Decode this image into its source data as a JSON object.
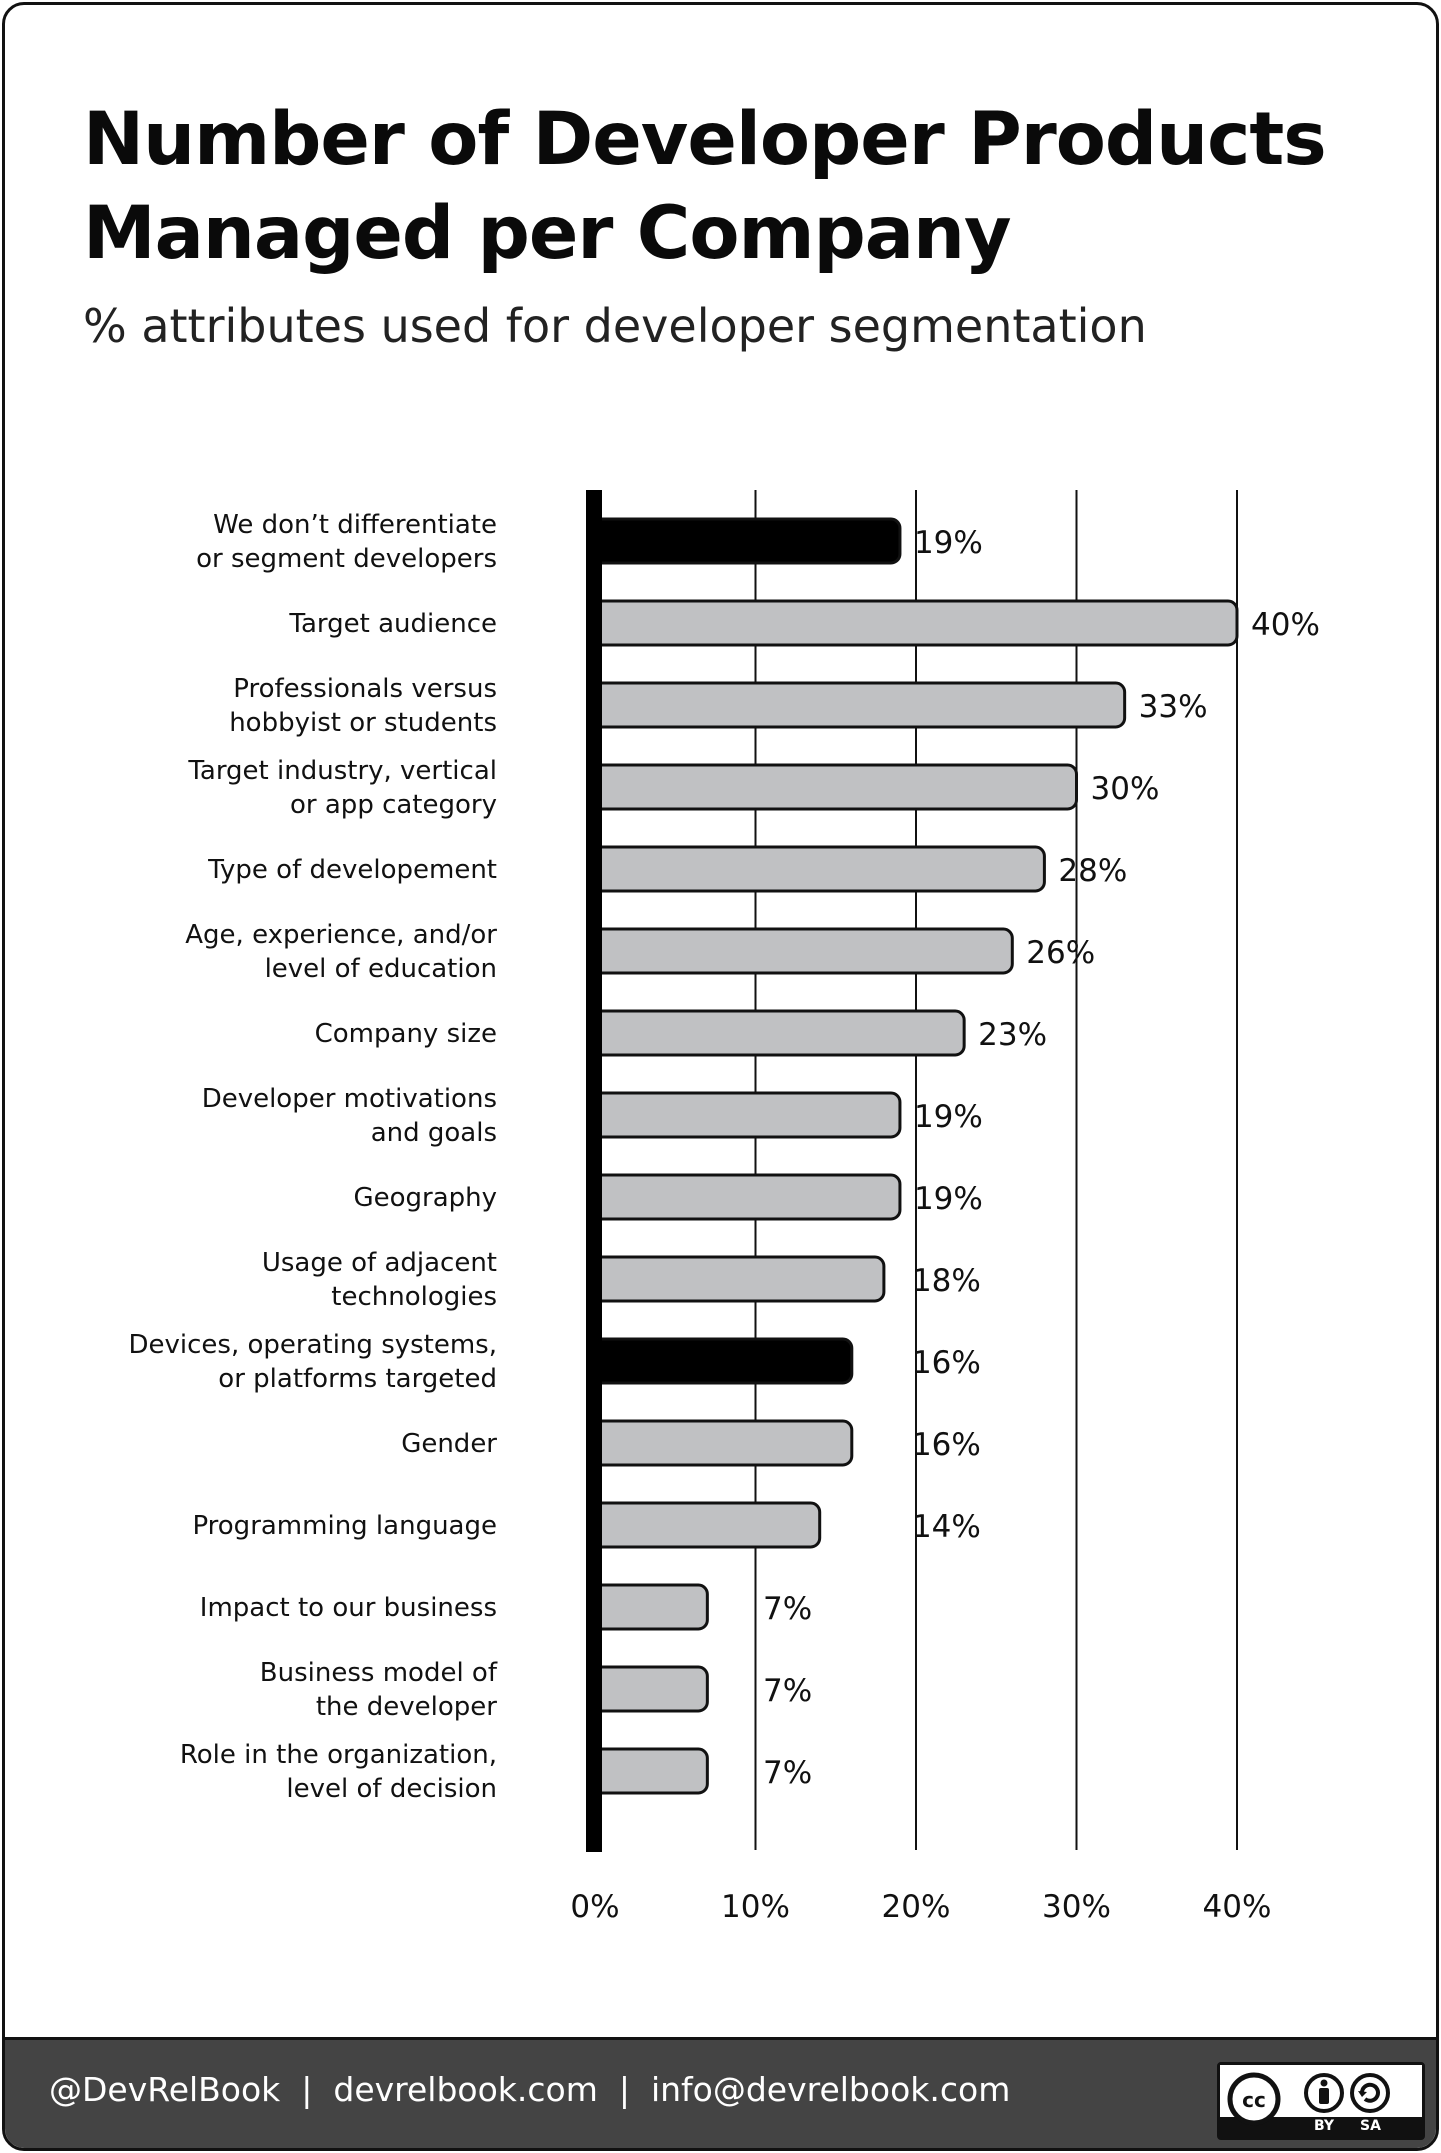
{
  "title": "Number of Developer Products\nManaged per Company",
  "subtitle": "% attributes used for developer segmentation",
  "colors": {
    "highlight_bar": "#000000",
    "normal_bar": "#c0c1c3",
    "axis": "#000000",
    "footer_bg": "#444444",
    "footer_text": "#ffffff"
  },
  "chart_data": {
    "type": "bar",
    "orientation": "horizontal",
    "title": "Number of Developer Products Managed per Company",
    "subtitle": "% attributes used for developer segmentation",
    "xlim": [
      0,
      40
    ],
    "x_ticks": [
      "0%",
      "10%",
      "20%",
      "30%",
      "40%"
    ],
    "tick_values": [
      0,
      10,
      20,
      30,
      40
    ],
    "grid": "vertical lines",
    "categories": [
      "We don’t differentiate\nor segment developers",
      "Target audience",
      "Professionals versus\nhobbyist or students",
      "Target industry, vertical\nor app category",
      "Type of developement",
      "Age, experience, and/or\nlevel of education",
      "Company size",
      "Developer motivations\nand goals",
      "Geography",
      "Usage of adjacent\ntechnologies",
      "Devices, operating systems,\nor platforms targeted",
      "Gender",
      "Programming language",
      "Impact to our business",
      "Business model of\nthe developer",
      "Role in the organization,\nlevel of decision"
    ],
    "values": [
      19,
      40,
      33,
      30,
      28,
      26,
      23,
      19,
      19,
      18,
      16,
      16,
      14,
      7,
      7,
      7
    ],
    "value_labels": [
      "19%",
      "40%",
      "33%",
      "30%",
      "28%",
      "26%",
      "23%",
      "19%",
      "19%",
      "18%",
      "16%",
      "16%",
      "14%",
      "7%",
      "7%",
      "7%"
    ],
    "highlighted": [
      true,
      false,
      false,
      false,
      false,
      false,
      false,
      false,
      false,
      false,
      true,
      false,
      false,
      false,
      false,
      false
    ]
  },
  "footer": {
    "text": "@DevRelBook  |  devrelbook.com  |  info@devrelbook.com",
    "license_icons": [
      "cc-icon",
      "by-icon",
      "sa-icon"
    ],
    "license_labels": [
      "BY",
      "SA"
    ]
  }
}
